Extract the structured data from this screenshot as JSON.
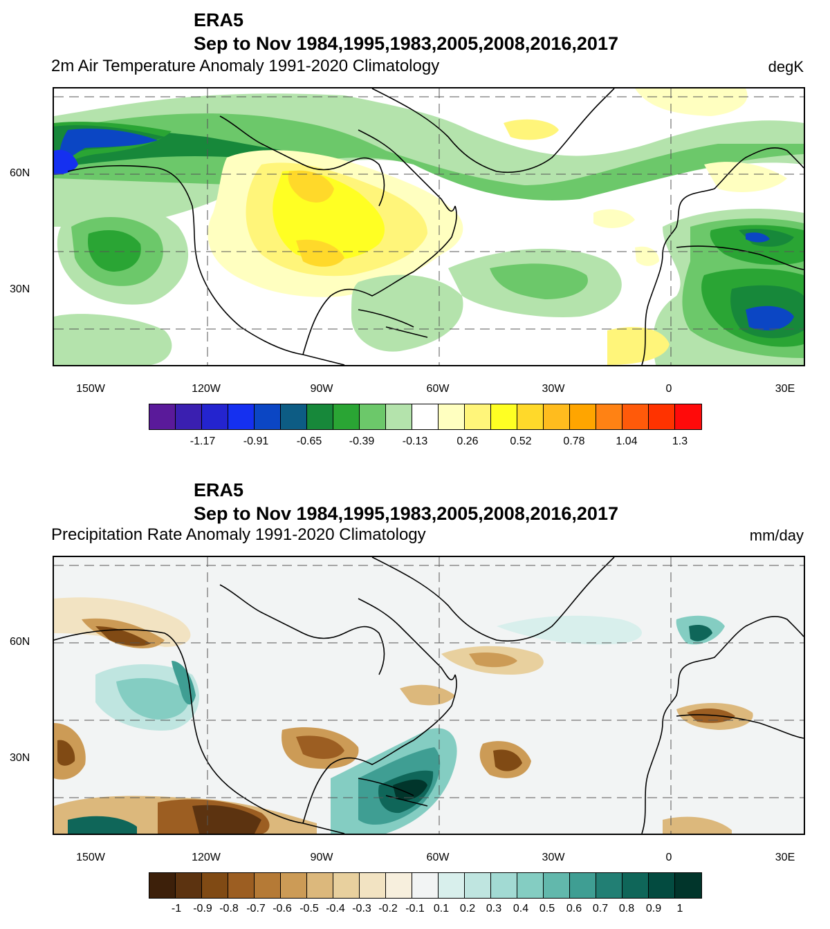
{
  "panels": [
    {
      "id": "temperature",
      "title_line1": "ERA5",
      "title_line2": "Sep to Nov 1984,1995,1983,2005,2008,2016,2017",
      "subtitle": "2m Air Temperature Anomaly  1991-2020 Climatology",
      "units": "degK",
      "lon_labels": [
        "150W",
        "120W",
        "90W",
        "60W",
        "30W",
        "0",
        "30E"
      ],
      "lat_labels": [
        "60N",
        "30N"
      ],
      "colorbar_colors": [
        "#5a1a9a",
        "#3a1fb0",
        "#2424cf",
        "#1530f0",
        "#0b46c4",
        "#0d5c84",
        "#17883a",
        "#2aa534",
        "#6cc86a",
        "#b4e3ac",
        "#ffffff",
        "#ffffc0",
        "#fff57a",
        "#ffff23",
        "#ffd92a",
        "#ffbc1e",
        "#ffa500",
        "#ff8214",
        "#ff5a0a",
        "#ff3300",
        "#ff0a0a"
      ],
      "colorbar_labels": [
        "-1.17",
        "-0.91",
        "-0.65",
        "-0.39",
        "-0.13",
        "0.26",
        "0.52",
        "0.78",
        "1.04",
        "1.3"
      ]
    },
    {
      "id": "precipitation",
      "title_line1": "ERA5",
      "title_line2": "Sep to Nov 1984,1995,1983,2005,2008,2016,2017",
      "subtitle": "Precipitation Rate Anomaly  1991-2020 Climatology",
      "units": "mm/day",
      "lon_labels": [
        "150W",
        "120W",
        "90W",
        "60W",
        "30W",
        "0",
        "30E"
      ],
      "lat_labels": [
        "60N",
        "30N"
      ],
      "colorbar_colors": [
        "#3d200a",
        "#5c3310",
        "#804a14",
        "#9c5e22",
        "#b57a36",
        "#cc9b56",
        "#dcb87c",
        "#e8d09e",
        "#f2e3c2",
        "#f7efdd",
        "#f2f4f4",
        "#d8efec",
        "#bfe5e0",
        "#a2dad3",
        "#84cdc2",
        "#62b8ac",
        "#3f9e93",
        "#227f74",
        "#0f6659",
        "#034b40",
        "#01352b"
      ],
      "colorbar_labels": [
        "-1",
        "-0.9",
        "-0.8",
        "-0.7",
        "-0.6",
        "-0.5",
        "-0.4",
        "-0.3",
        "-0.2",
        "-0.1",
        "0.1",
        "0.2",
        "0.3",
        "0.4",
        "0.5",
        "0.6",
        "0.7",
        "0.8",
        "0.9",
        "1"
      ]
    }
  ]
}
